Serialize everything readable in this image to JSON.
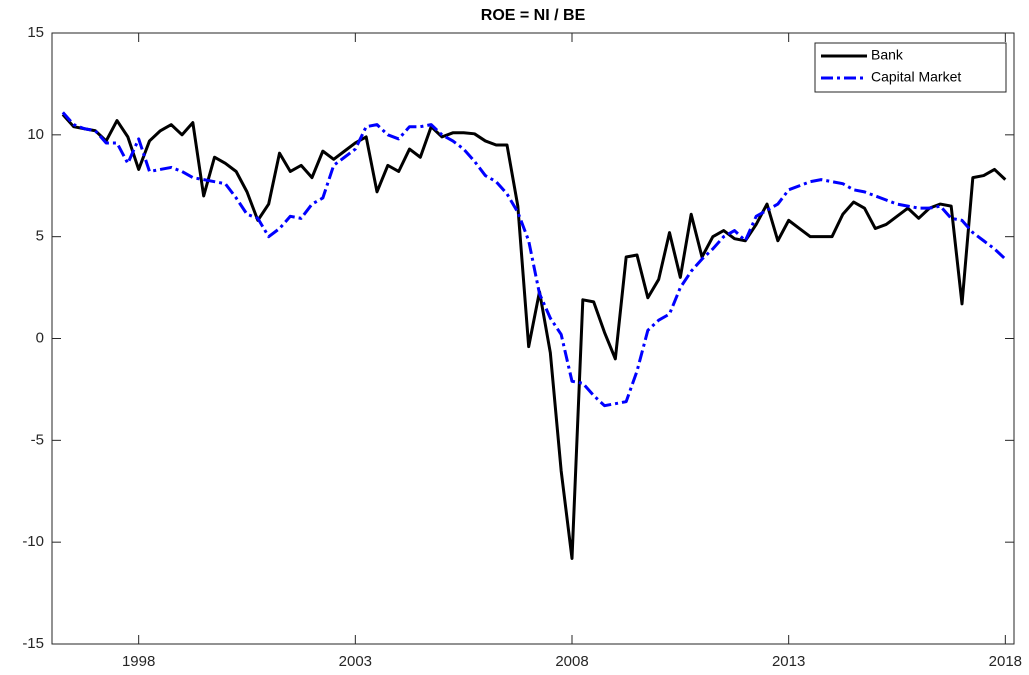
{
  "chart_data": {
    "type": "line",
    "title": "ROE = NI / BE",
    "x": [
      1996.25,
      1996.5,
      1996.75,
      1997,
      1997.25,
      1997.5,
      1997.75,
      1998,
      1998.25,
      1998.5,
      1998.75,
      1999,
      1999.25,
      1999.5,
      1999.75,
      2000,
      2000.25,
      2000.5,
      2000.75,
      2001,
      2001.25,
      2001.5,
      2001.75,
      2002,
      2002.25,
      2002.5,
      2002.75,
      2003,
      2003.25,
      2003.5,
      2003.75,
      2004,
      2004.25,
      2004.5,
      2004.75,
      2005,
      2005.25,
      2005.5,
      2005.75,
      2006,
      2006.25,
      2006.5,
      2006.75,
      2007,
      2007.25,
      2007.5,
      2007.75,
      2008,
      2008.25,
      2008.5,
      2008.75,
      2009,
      2009.25,
      2009.5,
      2009.75,
      2010,
      2010.25,
      2010.5,
      2010.75,
      2011,
      2011.25,
      2011.5,
      2011.75,
      2012,
      2012.25,
      2012.5,
      2012.75,
      2013,
      2013.25,
      2013.5,
      2013.75,
      2014,
      2014.25,
      2014.5,
      2014.75,
      2015,
      2015.25,
      2015.5,
      2015.75,
      2016,
      2016.25,
      2016.5,
      2016.75,
      2017,
      2017.25,
      2017.5,
      2017.75,
      2018
    ],
    "series": [
      {
        "name": "Bank",
        "color": "#000000",
        "dash": "solid",
        "values": [
          11.0,
          10.4,
          10.3,
          10.2,
          9.7,
          10.7,
          9.9,
          8.3,
          9.7,
          10.2,
          10.5,
          10.0,
          10.6,
          7.0,
          8.9,
          8.6,
          8.2,
          7.2,
          5.8,
          6.6,
          9.1,
          8.2,
          8.5,
          7.9,
          9.2,
          8.8,
          9.2,
          9.6,
          9.9,
          7.2,
          8.5,
          8.2,
          9.3,
          8.9,
          10.4,
          9.9,
          10.1,
          10.1,
          10.05,
          9.7,
          9.5,
          9.5,
          6.5,
          -0.4,
          2.3,
          -0.7,
          -6.5,
          -10.8,
          1.9,
          1.8,
          0.3,
          -1.0,
          4.0,
          4.1,
          2.0,
          2.9,
          5.2,
          3.0,
          6.1,
          4.0,
          5.0,
          5.3,
          4.9,
          4.8,
          5.6,
          6.6,
          4.8,
          5.8,
          5.4,
          5.0,
          5.0,
          5.0,
          6.1,
          6.7,
          6.4,
          5.4,
          5.6,
          6.0,
          6.4,
          5.9,
          6.4,
          6.6,
          6.5,
          1.7,
          7.9,
          8.0,
          8.3,
          7.8
        ]
      },
      {
        "name": "Capital Market",
        "color": "#0000ff",
        "dash": "dashdot",
        "values": [
          11.1,
          10.5,
          10.3,
          10.2,
          9.6,
          9.6,
          8.6,
          9.8,
          8.2,
          8.3,
          8.4,
          8.2,
          7.9,
          7.8,
          7.7,
          7.6,
          6.9,
          6.1,
          5.9,
          5.0,
          5.4,
          6.0,
          5.9,
          6.6,
          6.9,
          8.5,
          8.9,
          9.3,
          10.4,
          10.5,
          10.0,
          9.8,
          10.4,
          10.4,
          10.5,
          10.0,
          9.7,
          9.3,
          8.7,
          8.0,
          7.7,
          7.1,
          6.2,
          4.8,
          2.2,
          1.0,
          0.2,
          -2.1,
          -2.2,
          -2.8,
          -3.3,
          -3.2,
          -3.1,
          -1.6,
          0.4,
          0.9,
          1.2,
          2.5,
          3.3,
          3.9,
          4.4,
          5.0,
          5.3,
          4.8,
          6.0,
          6.3,
          6.6,
          7.3,
          7.5,
          7.7,
          7.8,
          7.7,
          7.6,
          7.3,
          7.2,
          7.0,
          6.8,
          6.6,
          6.5,
          6.4,
          6.4,
          6.5,
          5.9,
          5.8,
          5.2,
          4.8,
          4.4,
          3.9
        ]
      }
    ],
    "xlim": [
      1996,
      2018.2
    ],
    "xticks": [
      1998,
      2003,
      2008,
      2013,
      2018
    ],
    "ylim": [
      -15,
      15
    ],
    "yticks": [
      -15,
      -10,
      -5,
      0,
      5,
      10,
      15
    ],
    "grid": false,
    "legend": "upper right"
  }
}
